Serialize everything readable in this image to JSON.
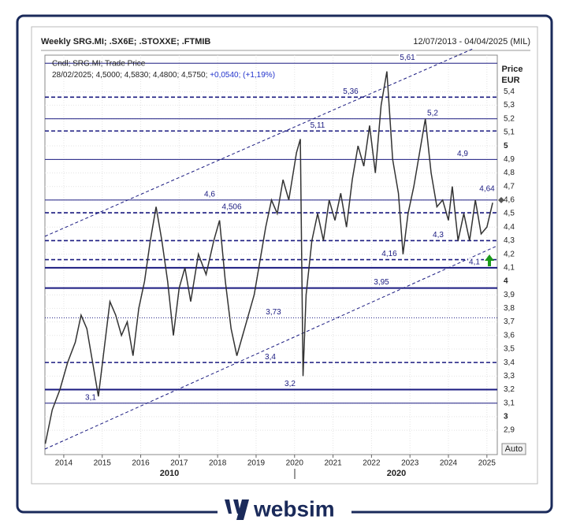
{
  "chart_data": {
    "type": "line",
    "title": "Weekly SRG.MI; .SX6E; .STOXXE; .FTMIB",
    "date_range": "12/07/2013 - 04/04/2025 (MIL)",
    "legend_line": "Cndl; SRG.MI; Trade Price",
    "last_bar": "28/02/2025; 4,5000; 4,5830; 4,4800; 4,5750;",
    "last_change": "+0,0540; (+1,19%)",
    "y_axis_label": "Price",
    "y_axis_unit": "EUR",
    "scale_mode": "Auto",
    "decade_labels": [
      "2010",
      "2020"
    ],
    "brand": "websim",
    "grid": true,
    "color": "#333333",
    "level_color": "#1a1a80",
    "xlim": [
      2013.51,
      2025.27
    ],
    "xticks": [
      2014,
      2015,
      2016,
      2017,
      2018,
      2019,
      2020,
      2021,
      2022,
      2023,
      2024,
      2025
    ],
    "ylim": [
      2.72,
      5.67
    ],
    "yticks": [
      {
        "value": 2.9,
        "label": "2,9"
      },
      3,
      {
        "value": 3.1,
        "label": "3,1"
      },
      {
        "value": 3.2,
        "label": "3,2"
      },
      {
        "value": 3.3,
        "label": "3,3"
      },
      {
        "value": 3.4,
        "label": "3,4"
      },
      {
        "value": 3.5,
        "label": "3,5"
      },
      {
        "value": 3.6,
        "label": "3,6"
      },
      {
        "value": 3.7,
        "label": "3,7"
      },
      {
        "value": 3.8,
        "label": "3,8"
      },
      {
        "value": 3.9,
        "label": "3,9"
      },
      4,
      {
        "value": 4.1,
        "label": "4,1"
      },
      {
        "value": 4.2,
        "label": "4,2"
      },
      {
        "value": 4.3,
        "label": "4,3"
      },
      {
        "value": 4.4,
        "label": "4,4"
      },
      {
        "value": 4.5,
        "label": "4,5"
      },
      {
        "value": 4.6,
        "label": "4,6"
      },
      {
        "value": 4.7,
        "label": "4,7"
      },
      {
        "value": 4.8,
        "label": "4,8"
      },
      {
        "value": 4.9,
        "label": "4,9"
      },
      5,
      {
        "value": 5.1,
        "label": "5,1"
      },
      {
        "value": 5.2,
        "label": "5,2"
      },
      {
        "value": 5.3,
        "label": "5,3"
      },
      {
        "value": 5.4,
        "label": "5,4"
      }
    ],
    "levels": [
      {
        "value": 5.61,
        "label": "5,61",
        "style": "solid"
      },
      {
        "value": 5.36,
        "label": "5,36",
        "style": "dashed"
      },
      {
        "value": 5.2,
        "label": "5,2",
        "style": "solid"
      },
      {
        "value": 5.11,
        "label": "5,11",
        "style": "dashed"
      },
      {
        "value": 4.9,
        "label": "4,9",
        "style": "solid"
      },
      {
        "value": 4.64,
        "label": "4,64",
        "style": "none"
      },
      {
        "value": 4.6,
        "label": "4,6",
        "style": "solid"
      },
      {
        "value": 4.506,
        "label": "4,506",
        "style": "dashed"
      },
      {
        "value": 4.3,
        "label": "4,3",
        "style": "dashed"
      },
      {
        "value": 4.16,
        "label": "4,16",
        "style": "dashed"
      },
      {
        "value": 4.1,
        "label": "4,1",
        "style": "thick"
      },
      {
        "value": 3.95,
        "label": "3,95",
        "style": "thick"
      },
      {
        "value": 3.73,
        "label": "3,73",
        "style": "dotted"
      },
      {
        "value": 3.4,
        "label": "3,4",
        "style": "dashed"
      },
      {
        "value": 3.2,
        "label": "3,2",
        "style": "thick"
      },
      {
        "value": 3.1,
        "label": "3,1",
        "style": "solid"
      }
    ],
    "x": [
      2013.52,
      2013.7,
      2013.9,
      2014.1,
      2014.3,
      2014.45,
      2014.6,
      2014.75,
      2014.9,
      2015.05,
      2015.2,
      2015.35,
      2015.5,
      2015.65,
      2015.8,
      2015.95,
      2016.1,
      2016.25,
      2016.4,
      2016.55,
      2016.7,
      2016.85,
      2017.0,
      2017.15,
      2017.3,
      2017.5,
      2017.7,
      2017.9,
      2018.05,
      2018.2,
      2018.35,
      2018.5,
      2018.65,
      2018.8,
      2018.95,
      2019.1,
      2019.25,
      2019.4,
      2019.55,
      2019.7,
      2019.85,
      2020.05,
      2020.15,
      2020.22,
      2020.3,
      2020.45,
      2020.6,
      2020.75,
      2020.9,
      2021.05,
      2021.2,
      2021.35,
      2021.5,
      2021.65,
      2021.8,
      2021.95,
      2022.1,
      2022.25,
      2022.4,
      2022.55,
      2022.7,
      2022.82,
      2022.95,
      2023.1,
      2023.25,
      2023.4,
      2023.55,
      2023.7,
      2023.85,
      2024.0,
      2024.1,
      2024.25,
      2024.4,
      2024.55,
      2024.7,
      2024.85,
      2025.0,
      2025.15
    ],
    "values": [
      2.8,
      3.05,
      3.2,
      3.4,
      3.55,
      3.75,
      3.65,
      3.4,
      3.15,
      3.5,
      3.85,
      3.75,
      3.6,
      3.7,
      3.45,
      3.8,
      4.0,
      4.3,
      4.55,
      4.3,
      4.0,
      3.6,
      3.95,
      4.1,
      3.85,
      4.2,
      4.05,
      4.3,
      4.45,
      4.0,
      3.65,
      3.45,
      3.6,
      3.75,
      3.9,
      4.15,
      4.4,
      4.6,
      4.5,
      4.75,
      4.6,
      4.95,
      5.05,
      3.3,
      3.9,
      4.3,
      4.5,
      4.3,
      4.6,
      4.45,
      4.65,
      4.4,
      4.75,
      5.0,
      4.85,
      5.15,
      4.8,
      5.3,
      5.55,
      4.9,
      4.65,
      4.2,
      4.5,
      4.7,
      4.95,
      5.2,
      4.8,
      4.55,
      4.6,
      4.45,
      4.7,
      4.3,
      4.5,
      4.3,
      4.6,
      4.35,
      4.4,
      4.58
    ]
  }
}
